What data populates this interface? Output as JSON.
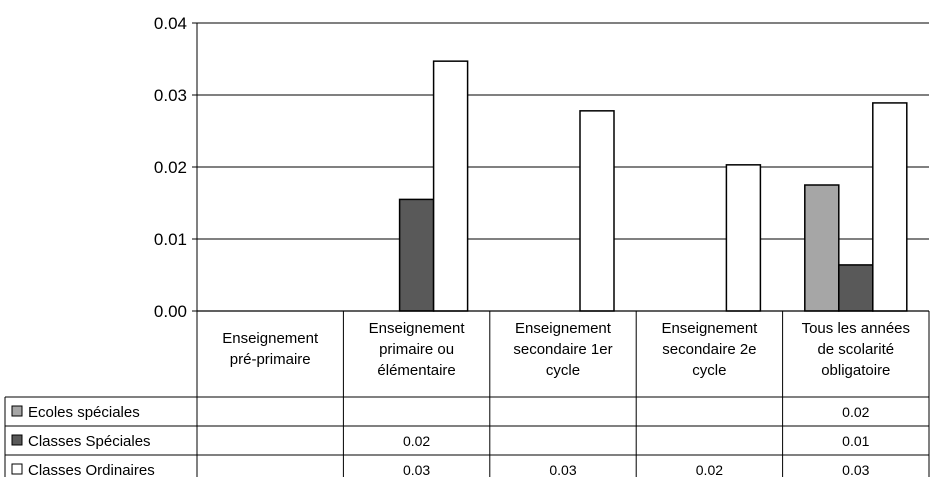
{
  "chart_data": {
    "type": "bar",
    "categories": [
      [
        "Enseignement",
        "pré-primaire"
      ],
      [
        "Enseignement",
        "primaire ou",
        "élémentaire"
      ],
      [
        "Enseignement",
        "secondaire 1er",
        "cycle"
      ],
      [
        "Enseignement",
        "secondaire 2e",
        "cycle"
      ],
      [
        "Tous les années",
        "de scolarité",
        "obligatoire"
      ]
    ],
    "series": [
      {
        "name": "Ecoles spéciales",
        "color": "#a6a6a6",
        "values": [
          null,
          null,
          null,
          null,
          0.0175
        ],
        "labels": [
          "",
          "",
          "",
          "",
          "0.02"
        ]
      },
      {
        "name": "Classes Spéciales",
        "color": "#595959",
        "values": [
          null,
          0.0155,
          null,
          null,
          0.0064
        ],
        "labels": [
          "",
          "0.02",
          "",
          "",
          "0.01"
        ]
      },
      {
        "name": "Classes Ordinaires",
        "color": "#ffffff",
        "values": [
          null,
          0.0347,
          0.0278,
          0.0203,
          0.0289
        ],
        "labels": [
          "",
          "0.03",
          "0.03",
          "0.02",
          "0.03"
        ]
      }
    ],
    "yticks": [
      "0.00",
      "0.01",
      "0.02",
      "0.03",
      "0.04"
    ],
    "ylim": [
      0,
      0.04
    ],
    "grid": true,
    "legend": "data-table-left",
    "title": "",
    "xlabel": "",
    "ylabel": ""
  }
}
